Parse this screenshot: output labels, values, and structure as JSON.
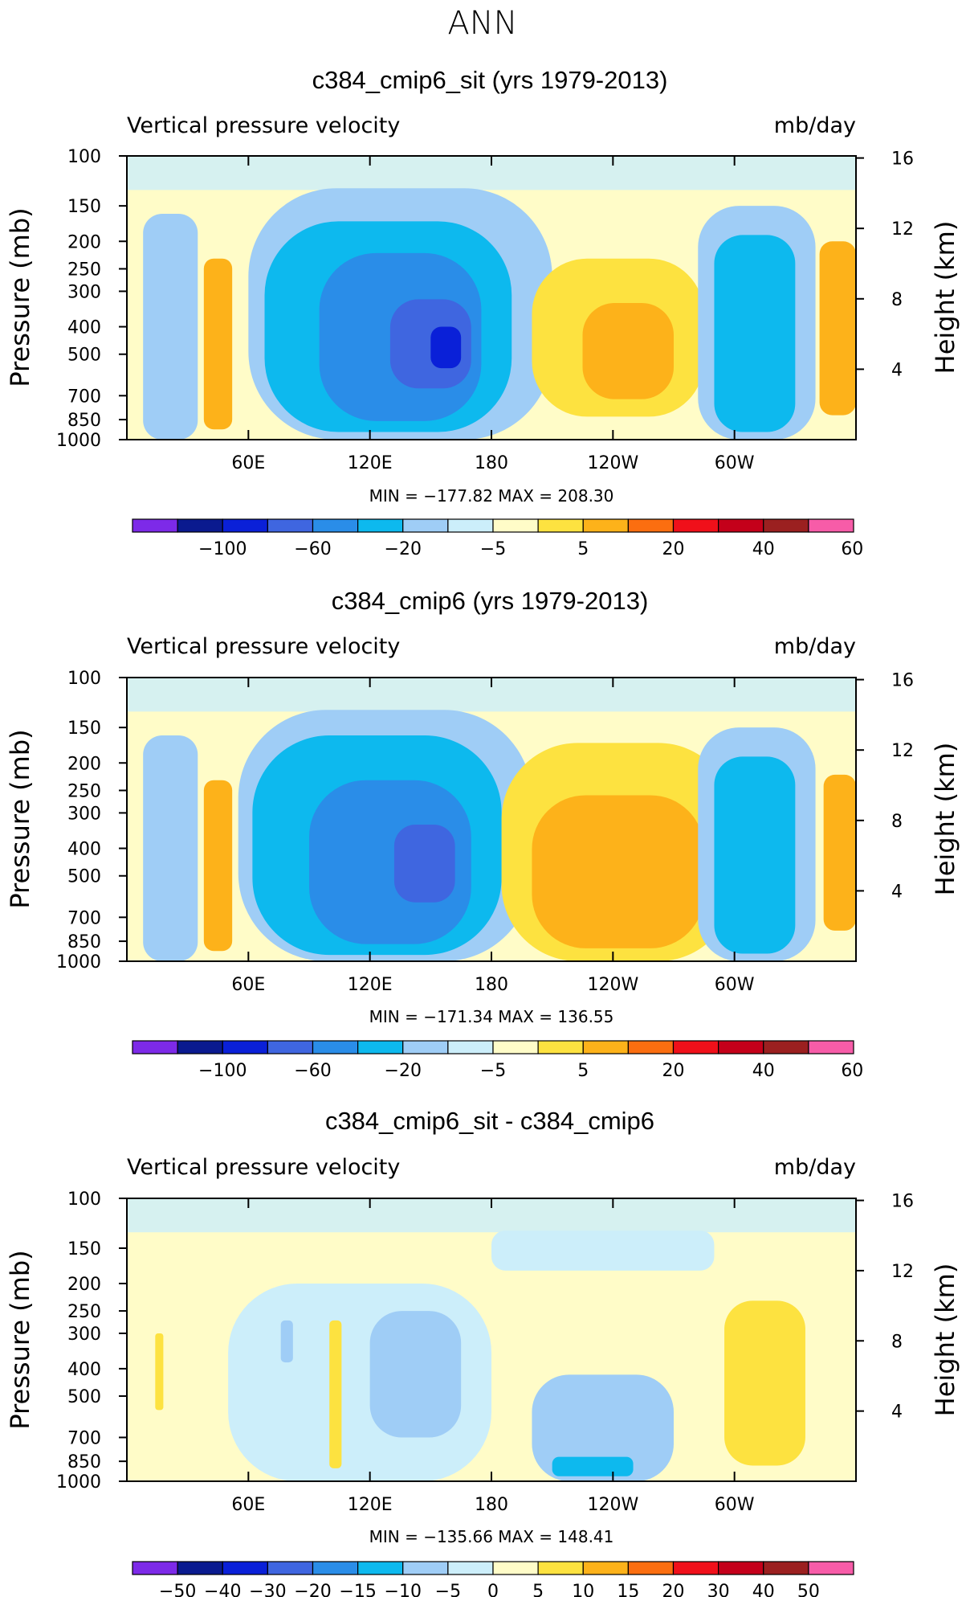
{
  "figure_title": "ANN",
  "colors": {
    "levels_main": [
      "#7d2ae8",
      "#0a1a8f",
      "#0a20d8",
      "#3f66e0",
      "#2a8de8",
      "#0db9ee",
      "#9fcdf6",
      "#cceefa",
      "#fffcc8",
      "#fde240",
      "#fdb21a",
      "#fb6e10",
      "#f0101a",
      "#c4001a",
      "#9b2020",
      "#f75ca8"
    ],
    "levels_diff": [
      "#7d2ae8",
      "#0a1a8f",
      "#0a20d8",
      "#3f66e0",
      "#2a8de8",
      "#0db9ee",
      "#9fcdf6",
      "#cceefa",
      "#fffcc8",
      "#fde240",
      "#fdb21a",
      "#fb6e10",
      "#f0101a",
      "#c4001a",
      "#9b2020",
      "#f75ca8"
    ]
  },
  "chart_data": [
    {
      "type": "heatmap",
      "title": "c384_cmip6_sit (yrs 1979-2013)",
      "variable_label": "Vertical pressure velocity",
      "units_label": "mb/day",
      "ylabel": "Pressure (mb)",
      "ylabel_right": "Height (km)",
      "y_ticks": [
        "100",
        "150",
        "200",
        "250",
        "300",
        "400",
        "500",
        "700",
        "850",
        "1000"
      ],
      "y_tick_values": [
        100,
        150,
        200,
        250,
        300,
        400,
        500,
        700,
        850,
        1000
      ],
      "y_right_ticks": [
        "16",
        "12",
        "8",
        "4"
      ],
      "y_right_values": [
        16,
        12,
        8,
        4
      ],
      "x_ticks": [
        "60E",
        "120E",
        "180",
        "120W",
        "60W"
      ],
      "x_tick_values": [
        60,
        120,
        180,
        240,
        300
      ],
      "xlim": [
        0,
        360
      ],
      "ylim": [
        1000,
        100
      ],
      "min_max_label": "MIN = −177.82   MAX = 208.30",
      "colorbar_labels": [
        "−100",
        "−60",
        "−20",
        "−5",
        "5",
        "20",
        "40",
        "60"
      ],
      "colorbar_label_positions": [
        2,
        4,
        6,
        8,
        10,
        12,
        14,
        15.97
      ],
      "blobs": [
        {
          "x": [
            60,
            210
          ],
          "p": [
            130,
            1000
          ],
          "level": 6
        },
        {
          "x": [
            68,
            190
          ],
          "p": [
            170,
            940
          ],
          "level": 5
        },
        {
          "x": [
            95,
            175
          ],
          "p": [
            220,
            860
          ],
          "level": 4
        },
        {
          "x": [
            130,
            170
          ],
          "p": [
            320,
            660
          ],
          "level": 3
        },
        {
          "x": [
            150,
            165
          ],
          "p": [
            400,
            560
          ],
          "level": 2
        },
        {
          "x": [
            200,
            285
          ],
          "p": [
            230,
            830
          ],
          "level": 9
        },
        {
          "x": [
            225,
            270
          ],
          "p": [
            330,
            720
          ],
          "level": 10
        },
        {
          "x": [
            282,
            340
          ],
          "p": [
            150,
            1000
          ],
          "level": 6
        },
        {
          "x": [
            290,
            330
          ],
          "p": [
            190,
            940
          ],
          "level": 5
        },
        {
          "x": [
            38,
            52
          ],
          "p": [
            230,
            920
          ],
          "level": 10
        },
        {
          "x": [
            8,
            35
          ],
          "p": [
            160,
            1000
          ],
          "level": 6
        },
        {
          "x": [
            342,
            360
          ],
          "p": [
            200,
            820
          ],
          "level": 10
        }
      ]
    },
    {
      "type": "heatmap",
      "title": "c384_cmip6 (yrs 1979-2013)",
      "variable_label": "Vertical pressure velocity",
      "units_label": "mb/day",
      "ylabel": "Pressure (mb)",
      "ylabel_right": "Height (km)",
      "y_ticks": [
        "100",
        "150",
        "200",
        "250",
        "300",
        "400",
        "500",
        "700",
        "850",
        "1000"
      ],
      "y_tick_values": [
        100,
        150,
        200,
        250,
        300,
        400,
        500,
        700,
        850,
        1000
      ],
      "y_right_ticks": [
        "16",
        "12",
        "8",
        "4"
      ],
      "y_right_values": [
        16,
        12,
        8,
        4
      ],
      "x_ticks": [
        "60E",
        "120E",
        "180",
        "120W",
        "60W"
      ],
      "x_tick_values": [
        60,
        120,
        180,
        240,
        300
      ],
      "xlim": [
        0,
        360
      ],
      "ylim": [
        1000,
        100
      ],
      "min_max_label": "MIN = −171.34   MAX = 136.55",
      "colorbar_labels": [
        "−100",
        "−60",
        "−20",
        "−5",
        "5",
        "20",
        "40",
        "60"
      ],
      "colorbar_label_positions": [
        2,
        4,
        6,
        8,
        10,
        12,
        14,
        15.97
      ],
      "blobs": [
        {
          "x": [
            55,
            200
          ],
          "p": [
            130,
            1000
          ],
          "level": 6
        },
        {
          "x": [
            62,
            185
          ],
          "p": [
            160,
            950
          ],
          "level": 5
        },
        {
          "x": [
            90,
            170
          ],
          "p": [
            230,
            870
          ],
          "level": 4
        },
        {
          "x": [
            132,
            162
          ],
          "p": [
            330,
            620
          ],
          "level": 3
        },
        {
          "x": [
            185,
            300
          ],
          "p": [
            170,
            1000
          ],
          "level": 9
        },
        {
          "x": [
            200,
            285
          ],
          "p": [
            260,
            900
          ],
          "level": 10
        },
        {
          "x": [
            282,
            340
          ],
          "p": [
            150,
            1000
          ],
          "level": 6
        },
        {
          "x": [
            290,
            330
          ],
          "p": [
            190,
            940
          ],
          "level": 5
        },
        {
          "x": [
            38,
            52
          ],
          "p": [
            230,
            920
          ],
          "level": 10
        },
        {
          "x": [
            8,
            35
          ],
          "p": [
            160,
            1000
          ],
          "level": 6
        },
        {
          "x": [
            344,
            360
          ],
          "p": [
            220,
            780
          ],
          "level": 10
        }
      ]
    },
    {
      "type": "heatmap",
      "title": "c384_cmip6_sit - c384_cmip6",
      "variable_label": "Vertical pressure velocity",
      "units_label": "mb/day",
      "ylabel": "Pressure (mb)",
      "ylabel_right": "Height (km)",
      "y_ticks": [
        "100",
        "150",
        "200",
        "250",
        "300",
        "400",
        "500",
        "700",
        "850",
        "1000"
      ],
      "y_tick_values": [
        100,
        150,
        200,
        250,
        300,
        400,
        500,
        700,
        850,
        1000
      ],
      "y_right_ticks": [
        "16",
        "12",
        "8",
        "4"
      ],
      "y_right_values": [
        16,
        12,
        8,
        4
      ],
      "x_ticks": [
        "60E",
        "120E",
        "180",
        "120W",
        "60W"
      ],
      "x_tick_values": [
        60,
        120,
        180,
        240,
        300
      ],
      "xlim": [
        0,
        360
      ],
      "ylim": [
        1000,
        100
      ],
      "min_max_label": "MIN = −135.66   MAX = 148.41",
      "colorbar_labels": [
        "−50",
        "−40",
        "−30",
        "−20",
        "−15",
        "−10",
        "−5",
        "0",
        "5",
        "10",
        "15",
        "20",
        "30",
        "40",
        "50"
      ],
      "colorbar_label_positions": [
        1,
        2,
        3,
        4,
        5,
        6,
        7,
        8,
        9,
        10,
        11,
        12,
        13,
        14,
        15
      ],
      "blobs": [
        {
          "x": [
            50,
            180
          ],
          "p": [
            200,
            1000
          ],
          "level": 7
        },
        {
          "x": [
            120,
            165
          ],
          "p": [
            250,
            700
          ],
          "level": 6
        },
        {
          "x": [
            200,
            270
          ],
          "p": [
            420,
            1000
          ],
          "level": 6
        },
        {
          "x": [
            210,
            250
          ],
          "p": [
            820,
            960
          ],
          "level": 5
        },
        {
          "x": [
            76,
            82
          ],
          "p": [
            270,
            380
          ],
          "level": 6
        },
        {
          "x": [
            100,
            106
          ],
          "p": [
            270,
            900
          ],
          "level": 9
        },
        {
          "x": [
            14,
            18
          ],
          "p": [
            300,
            560
          ],
          "level": 9
        },
        {
          "x": [
            295,
            335
          ],
          "p": [
            230,
            880
          ],
          "level": 9
        },
        {
          "x": [
            180,
            290
          ],
          "p": [
            130,
            180
          ],
          "level": 7
        }
      ]
    }
  ]
}
